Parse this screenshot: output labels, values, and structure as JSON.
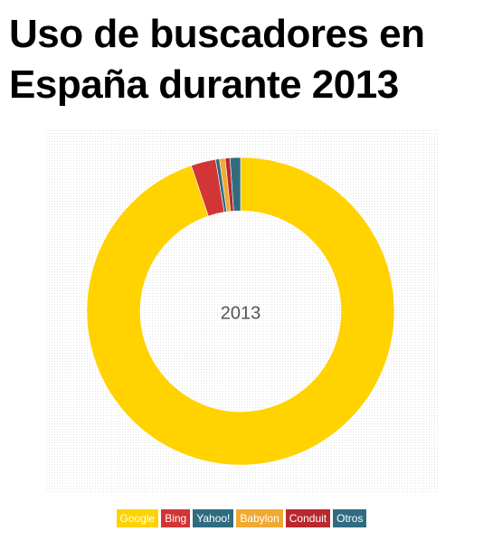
{
  "title": "Uso de buscadores en España durante 2013",
  "chart_data": {
    "type": "pie",
    "style": "donut",
    "center_label": "2013",
    "slices": [
      {
        "label": "Google",
        "value": 94.8,
        "color": "#FFD200"
      },
      {
        "label": "Bing",
        "value": 2.6,
        "color": "#D23535"
      },
      {
        "label": "Yahoo!",
        "value": 0.4,
        "color": "#2F6C80"
      },
      {
        "label": "Babylon",
        "value": 0.6,
        "color": "#F0AA32"
      },
      {
        "label": "Conduit",
        "value": 0.5,
        "color": "#B8282E"
      },
      {
        "label": "Otros",
        "value": 1.1,
        "color": "#2F6C80"
      }
    ],
    "legend_position": "bottom"
  }
}
